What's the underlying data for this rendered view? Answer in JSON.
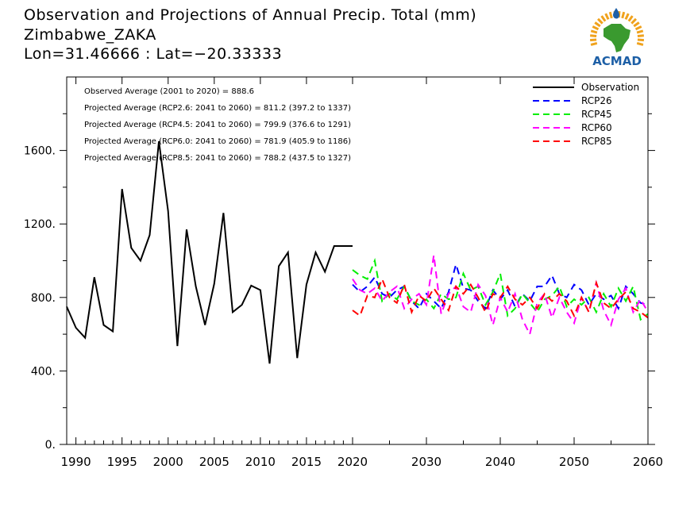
{
  "header": {
    "title_line1": "Observation and Projections of Annual Precip. Total (mm)",
    "title_line2": "Zimbabwe_ZAKA",
    "title_line3": "Lon=31.46666 : Lat=−20.33333",
    "logo_text": "ACMAD"
  },
  "colors": {
    "observation": "#000000",
    "RCP26": "#0000ff",
    "RCP45": "#00ee00",
    "RCP60": "#ff00ff",
    "RCP85": "#ff0000",
    "logo_blue": "#1d5fa6",
    "logo_green": "#3a9a2f",
    "logo_orange": "#f0a21c"
  },
  "chart_data": {
    "type": "line",
    "xlim": [
      1989,
      2060
    ],
    "ylim": [
      0,
      2000
    ],
    "x_ticks": [
      1990,
      1995,
      2000,
      2005,
      2010,
      2015,
      2020,
      2030,
      2040,
      2050,
      2060
    ],
    "y_ticks": [
      0,
      400,
      800,
      1200,
      1600
    ],
    "y_tick_labels": [
      "0.",
      "400.",
      "800.",
      "1200.",
      "1600."
    ],
    "grid": false,
    "legend_position": "top-right",
    "annotations": [
      "Observed Average (2001 to 2020) = 888.6",
      "Projected Average (RCP2.6: 2041 to 2060) = 811.2 (397.2 to 1337)",
      "Projected Average (RCP4.5: 2041 to 2060) = 799.9 (376.6 to 1291)",
      "Projected Average (RCP6.0: 2041 to 2060) = 781.9 (405.9 to 1186)",
      "Projected Average (RCP8.5: 2041 to 2060) = 788.2 (437.5 to 1327)"
    ],
    "series": [
      {
        "name": "Observation",
        "style": "solid",
        "x": [
          1989,
          1990,
          1991,
          1992,
          1993,
          1994,
          1995,
          1996,
          1997,
          1998,
          1999,
          2000,
          2001,
          2002,
          2003,
          2004,
          2005,
          2006,
          2007,
          2008,
          2009,
          2010,
          2011,
          2012,
          2013,
          2014,
          2015,
          2016,
          2017,
          2018,
          2019,
          2020
        ],
        "y": [
          750,
          635,
          580,
          910,
          650,
          615,
          1390,
          1070,
          1000,
          1140,
          1650,
          1270,
          535,
          1170,
          860,
          650,
          875,
          1260,
          720,
          760,
          865,
          840,
          440,
          970,
          1045,
          470,
          870,
          1045,
          940,
          1080,
          1080,
          1080
        ]
      },
      {
        "name": "RCP26",
        "style": "dashed",
        "x": [
          2020,
          2021,
          2022,
          2023,
          2024,
          2025,
          2026,
          2027,
          2028,
          2029,
          2030,
          2031,
          2032,
          2033,
          2034,
          2035,
          2036,
          2037,
          2038,
          2039,
          2040,
          2041,
          2042,
          2043,
          2044,
          2045,
          2046,
          2047,
          2048,
          2049,
          2050,
          2051,
          2052,
          2053,
          2054,
          2055,
          2056,
          2057,
          2058,
          2059,
          2060
        ],
        "y": [
          870,
          830,
          860,
          910,
          820,
          800,
          840,
          860,
          780,
          740,
          820,
          780,
          740,
          830,
          980,
          850,
          840,
          780,
          740,
          840,
          790,
          840,
          750,
          820,
          780,
          860,
          860,
          920,
          820,
          800,
          870,
          840,
          760,
          820,
          790,
          810,
          740,
          860,
          820,
          770,
          760
        ]
      },
      {
        "name": "RCP45",
        "style": "dashed",
        "x": [
          2020,
          2021,
          2022,
          2023,
          2024,
          2025,
          2026,
          2027,
          2028,
          2029,
          2030,
          2031,
          2032,
          2033,
          2034,
          2035,
          2036,
          2037,
          2038,
          2039,
          2040,
          2041,
          2042,
          2043,
          2044,
          2045,
          2046,
          2047,
          2048,
          2049,
          2050,
          2051,
          2052,
          2053,
          2054,
          2055,
          2056,
          2057,
          2058,
          2059,
          2060
        ],
        "y": [
          950,
          920,
          900,
          1000,
          780,
          820,
          790,
          860,
          780,
          760,
          790,
          740,
          820,
          790,
          800,
          930,
          840,
          860,
          760,
          830,
          930,
          700,
          740,
          820,
          770,
          720,
          790,
          810,
          860,
          750,
          790,
          760,
          800,
          720,
          820,
          750,
          850,
          780,
          860,
          680,
          710
        ]
      },
      {
        "name": "RCP60",
        "style": "dashed",
        "x": [
          2020,
          2021,
          2022,
          2023,
          2024,
          2025,
          2026,
          2027,
          2028,
          2029,
          2030,
          2031,
          2032,
          2033,
          2034,
          2035,
          2036,
          2037,
          2038,
          2039,
          2040,
          2041,
          2042,
          2043,
          2044,
          2045,
          2046,
          2047,
          2048,
          2049,
          2050,
          2051,
          2052,
          2053,
          2054,
          2055,
          2056,
          2057,
          2058,
          2059,
          2060
        ],
        "y": [
          900,
          840,
          820,
          850,
          780,
          830,
          860,
          740,
          790,
          820,
          760,
          1030,
          710,
          820,
          860,
          750,
          720,
          870,
          810,
          650,
          800,
          720,
          820,
          680,
          600,
          770,
          820,
          690,
          800,
          720,
          660,
          800,
          720,
          880,
          730,
          650,
          790,
          850,
          720,
          790,
          720
        ]
      },
      {
        "name": "RCP85",
        "style": "dashed",
        "x": [
          2020,
          2021,
          2022,
          2023,
          2024,
          2025,
          2026,
          2027,
          2028,
          2029,
          2030,
          2031,
          2032,
          2033,
          2034,
          2035,
          2036,
          2037,
          2038,
          2039,
          2040,
          2041,
          2042,
          2043,
          2044,
          2045,
          2046,
          2047,
          2048,
          2049,
          2050,
          2051,
          2052,
          2053,
          2054,
          2055,
          2056,
          2057,
          2058,
          2059,
          2060
        ],
        "y": [
          730,
          700,
          810,
          800,
          900,
          800,
          770,
          870,
          720,
          810,
          780,
          850,
          790,
          730,
          860,
          820,
          870,
          800,
          720,
          820,
          800,
          860,
          790,
          760,
          800,
          740,
          820,
          780,
          820,
          780,
          700,
          800,
          720,
          880,
          770,
          740,
          790,
          830,
          740,
          720,
          690
        ]
      }
    ]
  }
}
